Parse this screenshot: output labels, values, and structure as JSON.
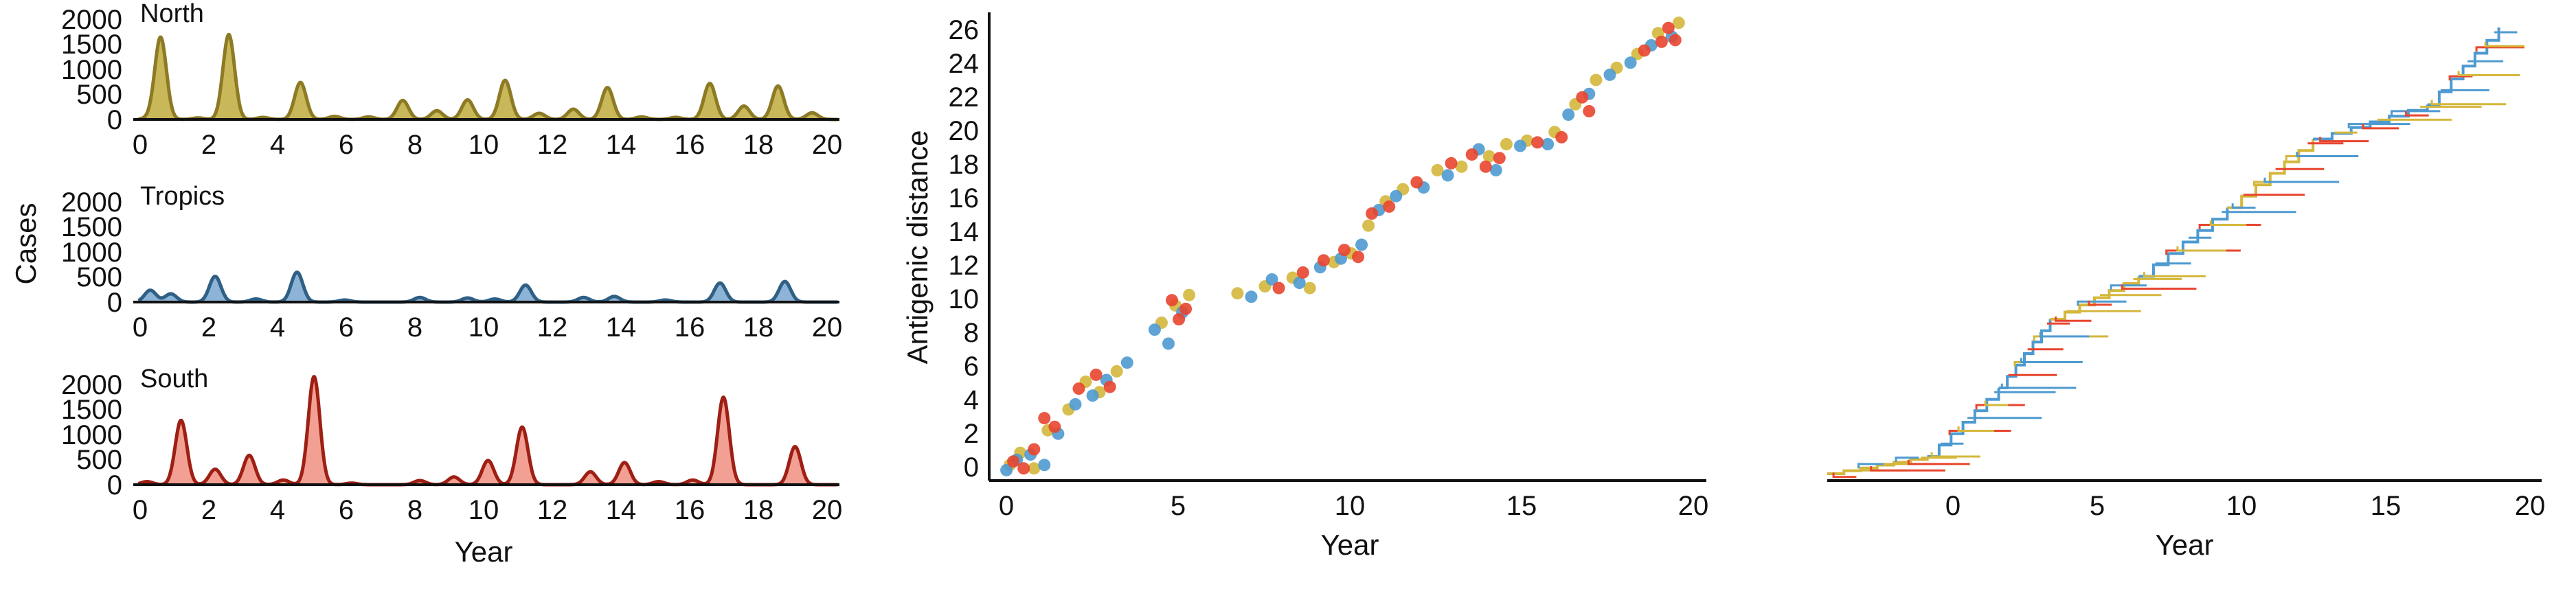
{
  "colors": {
    "north_line": "#8C7A24",
    "north_fill": "#C8B85A",
    "tropics_line": "#2F5F85",
    "tropics_fill": "#8DB4D6",
    "south_line": "#9E1F14",
    "south_fill": "#F2A093",
    "scatter_north": "#D4B73C",
    "scatter_tropics": "#4E9AD0",
    "scatter_south": "#E8452F",
    "tree_north": "#D4B73C",
    "tree_tropics": "#4E9AD0",
    "tree_south": "#E8452F"
  },
  "chart_data": [
    {
      "type": "area",
      "title": "North",
      "xlabel": "",
      "ylabel": "",
      "xlim": [
        -0.2,
        20.5
      ],
      "ylim": [
        0,
        2000
      ],
      "xticks": [
        "0",
        "2",
        "4",
        "6",
        "8",
        "10",
        "12",
        "14",
        "16",
        "18",
        "20"
      ],
      "yticks": [
        "0",
        "500",
        "1000",
        "1500",
        "2000"
      ],
      "peaks": [
        {
          "x": 0.2,
          "y": 20
        },
        {
          "x": 0.6,
          "y": 1600
        },
        {
          "x": 1.7,
          "y": 30
        },
        {
          "x": 2.6,
          "y": 1650
        },
        {
          "x": 3.6,
          "y": 40
        },
        {
          "x": 4.7,
          "y": 720
        },
        {
          "x": 5.7,
          "y": 60
        },
        {
          "x": 6.7,
          "y": 50
        },
        {
          "x": 7.7,
          "y": 370
        },
        {
          "x": 8.7,
          "y": 170
        },
        {
          "x": 9.6,
          "y": 380
        },
        {
          "x": 10.7,
          "y": 760
        },
        {
          "x": 11.7,
          "y": 120
        },
        {
          "x": 12.7,
          "y": 200
        },
        {
          "x": 13.7,
          "y": 620
        },
        {
          "x": 14.7,
          "y": 50
        },
        {
          "x": 15.7,
          "y": 40
        },
        {
          "x": 16.7,
          "y": 700
        },
        {
          "x": 17.7,
          "y": 260
        },
        {
          "x": 18.7,
          "y": 650
        },
        {
          "x": 19.7,
          "y": 130
        }
      ]
    },
    {
      "type": "area",
      "title": "Tropics",
      "xlabel": "",
      "ylabel": "Cases",
      "xlim": [
        -0.2,
        20.5
      ],
      "ylim": [
        0,
        2000
      ],
      "xticks": [
        "0",
        "2",
        "4",
        "6",
        "8",
        "10",
        "12",
        "14",
        "16",
        "18",
        "20"
      ],
      "yticks": [
        "0",
        "500",
        "1000",
        "1500",
        "2000"
      ],
      "peaks": [
        {
          "x": 0.3,
          "y": 230
        },
        {
          "x": 0.9,
          "y": 160
        },
        {
          "x": 2.2,
          "y": 500
        },
        {
          "x": 3.4,
          "y": 60
        },
        {
          "x": 4.6,
          "y": 580
        },
        {
          "x": 6.0,
          "y": 40
        },
        {
          "x": 8.2,
          "y": 90
        },
        {
          "x": 9.6,
          "y": 80
        },
        {
          "x": 10.4,
          "y": 60
        },
        {
          "x": 11.3,
          "y": 330
        },
        {
          "x": 13.0,
          "y": 90
        },
        {
          "x": 13.9,
          "y": 110
        },
        {
          "x": 15.4,
          "y": 40
        },
        {
          "x": 17.0,
          "y": 370
        },
        {
          "x": 18.9,
          "y": 400
        }
      ]
    },
    {
      "type": "area",
      "title": "South",
      "xlabel": "Year",
      "ylabel": "",
      "xlim": [
        -0.2,
        20.5
      ],
      "ylim": [
        0,
        2000
      ],
      "xticks": [
        "0",
        "2",
        "4",
        "6",
        "8",
        "10",
        "12",
        "14",
        "16",
        "18",
        "20"
      ],
      "yticks": [
        "0",
        "500",
        "1000",
        "1500",
        "2000"
      ],
      "peaks": [
        {
          "x": 0.2,
          "y": 60
        },
        {
          "x": 1.2,
          "y": 1250
        },
        {
          "x": 2.2,
          "y": 300
        },
        {
          "x": 3.2,
          "y": 570
        },
        {
          "x": 4.2,
          "y": 90
        },
        {
          "x": 5.1,
          "y": 2100
        },
        {
          "x": 6.2,
          "y": 30
        },
        {
          "x": 8.2,
          "y": 80
        },
        {
          "x": 9.2,
          "y": 150
        },
        {
          "x": 10.2,
          "y": 470
        },
        {
          "x": 11.2,
          "y": 1120
        },
        {
          "x": 13.2,
          "y": 250
        },
        {
          "x": 14.2,
          "y": 430
        },
        {
          "x": 15.2,
          "y": 60
        },
        {
          "x": 16.2,
          "y": 90
        },
        {
          "x": 17.1,
          "y": 1700
        },
        {
          "x": 19.2,
          "y": 740
        }
      ]
    },
    {
      "type": "scatter",
      "title": "",
      "xlabel": "Year",
      "ylabel": "Antigenic distance",
      "xlim": [
        -0.4,
        20.4
      ],
      "ylim": [
        -0.5,
        26.5
      ],
      "xticks": [
        "0",
        "5",
        "10",
        "15",
        "20"
      ],
      "yticks": [
        "0",
        "2",
        "4",
        "6",
        "8",
        "10",
        "12",
        "14",
        "16",
        "18",
        "20",
        "22",
        "24",
        "26"
      ],
      "series": [
        {
          "region": "north",
          "points": [
            [
              0.2,
              0.4
            ],
            [
              0.5,
              1.1
            ],
            [
              0.9,
              0.2
            ],
            [
              1.3,
              2.4
            ],
            [
              1.9,
              3.6
            ],
            [
              2.4,
              5.2
            ],
            [
              2.8,
              4.6
            ],
            [
              3.3,
              5.8
            ],
            [
              4.6,
              8.6
            ],
            [
              5.0,
              9.6
            ],
            [
              5.4,
              10.2
            ],
            [
              6.8,
              10.3
            ],
            [
              7.6,
              10.7
            ],
            [
              8.4,
              11.2
            ],
            [
              8.9,
              10.6
            ],
            [
              9.6,
              12.1
            ],
            [
              10.1,
              12.6
            ],
            [
              10.6,
              14.2
            ],
            [
              11.1,
              15.6
            ],
            [
              11.6,
              16.3
            ],
            [
              12.6,
              17.4
            ],
            [
              13.3,
              17.6
            ],
            [
              14.1,
              18.2
            ],
            [
              14.6,
              18.9
            ],
            [
              15.2,
              19.1
            ],
            [
              16.0,
              19.6
            ],
            [
              16.6,
              21.2
            ],
            [
              17.2,
              22.6
            ],
            [
              17.8,
              23.3
            ],
            [
              18.4,
              24.1
            ],
            [
              19.0,
              25.3
            ],
            [
              19.6,
              25.9
            ]
          ]
        },
        {
          "region": "tropics",
          "points": [
            [
              0.1,
              0.1
            ],
            [
              0.4,
              0.7
            ],
            [
              0.8,
              1.0
            ],
            [
              1.2,
              0.4
            ],
            [
              1.6,
              2.2
            ],
            [
              2.1,
              3.9
            ],
            [
              2.6,
              4.4
            ],
            [
              3.0,
              5.3
            ],
            [
              3.6,
              6.3
            ],
            [
              4.4,
              8.2
            ],
            [
              4.8,
              7.4
            ],
            [
              5.2,
              9.2
            ],
            [
              7.2,
              10.1
            ],
            [
              7.8,
              11.1
            ],
            [
              8.6,
              10.9
            ],
            [
              9.2,
              11.8
            ],
            [
              9.8,
              12.3
            ],
            [
              10.4,
              13.1
            ],
            [
              10.9,
              15.1
            ],
            [
              11.4,
              15.9
            ],
            [
              12.2,
              16.4
            ],
            [
              12.9,
              17.1
            ],
            [
              13.8,
              18.6
            ],
            [
              14.3,
              17.4
            ],
            [
              15.0,
              18.8
            ],
            [
              15.8,
              18.9
            ],
            [
              16.4,
              20.6
            ],
            [
              17.0,
              21.8
            ],
            [
              17.6,
              22.9
            ],
            [
              18.2,
              23.6
            ],
            [
              18.8,
              24.6
            ],
            [
              19.4,
              25.1
            ]
          ]
        },
        {
          "region": "south",
          "points": [
            [
              0.3,
              0.6
            ],
            [
              0.6,
              0.2
            ],
            [
              0.9,
              1.3
            ],
            [
              1.2,
              3.1
            ],
            [
              1.5,
              2.6
            ],
            [
              2.2,
              4.8
            ],
            [
              2.7,
              5.6
            ],
            [
              3.1,
              4.9
            ],
            [
              4.9,
              9.9
            ],
            [
              5.1,
              8.8
            ],
            [
              5.3,
              9.4
            ],
            [
              8.0,
              10.6
            ],
            [
              8.7,
              11.5
            ],
            [
              9.3,
              12.2
            ],
            [
              9.9,
              12.8
            ],
            [
              10.3,
              12.4
            ],
            [
              10.7,
              14.9
            ],
            [
              11.2,
              15.3
            ],
            [
              12.0,
              16.7
            ],
            [
              13.0,
              17.8
            ],
            [
              13.6,
              18.3
            ],
            [
              14.0,
              17.6
            ],
            [
              14.4,
              18.1
            ],
            [
              15.5,
              19.0
            ],
            [
              16.2,
              19.3
            ],
            [
              16.8,
              21.6
            ],
            [
              17.0,
              20.8
            ],
            [
              18.6,
              24.3
            ],
            [
              19.1,
              24.8
            ],
            [
              19.3,
              25.6
            ],
            [
              19.5,
              24.9
            ]
          ]
        }
      ]
    },
    {
      "type": "tree",
      "title": "",
      "xlabel": "Year",
      "ylabel": "",
      "xlim": [
        -4.5,
        20.5
      ],
      "xticks": [
        "0",
        "5",
        "10",
        "15",
        "20"
      ],
      "trunk": [
        {
          "region": "north",
          "x0": -4.5,
          "y0": 0.0,
          "x1": -1.0,
          "y1": 1.0
        },
        {
          "region": "tropics",
          "x0": -1.0,
          "y0": 1.0,
          "x1": 1.5,
          "y1": 5.0
        },
        {
          "region": "tropics",
          "x0": 1.5,
          "y0": 5.0,
          "x1": 3.3,
          "y1": 9.0
        },
        {
          "region": "north",
          "x0": 3.3,
          "y0": 9.0,
          "x1": 6.4,
          "y1": 11.5
        },
        {
          "region": "tropics",
          "x0": 6.4,
          "y0": 11.5,
          "x1": 9.5,
          "y1": 15.5
        },
        {
          "region": "north",
          "x0": 9.5,
          "y0": 15.5,
          "x1": 12.5,
          "y1": 19.5
        },
        {
          "region": "tropics",
          "x0": 12.5,
          "y0": 19.5,
          "x1": 16.5,
          "y1": 21.5
        },
        {
          "region": "tropics",
          "x0": 16.5,
          "y0": 21.5,
          "x1": 19.0,
          "y1": 26.0
        }
      ]
    }
  ]
}
